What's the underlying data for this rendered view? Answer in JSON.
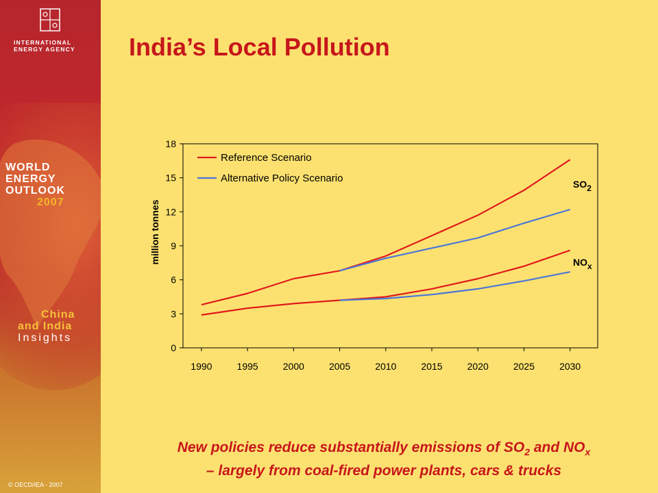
{
  "sidebar": {
    "org_line1": "INTERNATIONAL",
    "org_line2": "ENERGY AGENCY",
    "weo_line1": "WORLD",
    "weo_line2": "ENERGY",
    "weo_line3": "OUTLOOK",
    "weo_year": "2007",
    "ci_line1": "China",
    "ci_line2": "and India",
    "ci_line3": "Insights",
    "copyright": "© OECD/IEA - 2007"
  },
  "colors": {
    "background": "#fde170",
    "title": "#c6161b",
    "reference": "#e01a1c",
    "alternative": "#4a76d8"
  },
  "slide": {
    "title": "India’s Local Pollution"
  },
  "caption": {
    "line1_a": "New policies reduce substantially emissions of SO",
    "line1_sub1": "2",
    "line1_b": " and NO",
    "line1_sub2": "x",
    "line2": "– largely from coal-fired power plants, cars & trucks"
  },
  "chart_data": {
    "type": "line",
    "x": [
      1990,
      1995,
      2000,
      2005,
      2010,
      2015,
      2020,
      2025,
      2030
    ],
    "xlim": [
      1988,
      2033
    ],
    "ylim": [
      0,
      18
    ],
    "yticks": [
      0,
      3,
      6,
      9,
      12,
      15,
      18
    ],
    "ylabel": "million tonnes",
    "xlabel": "",
    "grid": false,
    "legend": {
      "placement": "top-left",
      "entries": [
        {
          "label": "Reference Scenario",
          "color": "#e01a1c"
        },
        {
          "label": "Alternative Policy Scenario",
          "color": "#4a76d8"
        }
      ]
    },
    "series": [
      {
        "group": "SO2",
        "scenario": "Reference Scenario",
        "color": "#e01a1c",
        "x": [
          1990,
          1995,
          2000,
          2005,
          2010,
          2015,
          2020,
          2025,
          2030
        ],
        "values": [
          3.8,
          4.8,
          6.1,
          6.8,
          8.1,
          9.9,
          11.7,
          13.9,
          16.6
        ]
      },
      {
        "group": "SO2",
        "scenario": "Alternative Policy Scenario",
        "color": "#4a76d8",
        "x": [
          2005,
          2010,
          2015,
          2020,
          2025,
          2030
        ],
        "values": [
          6.8,
          7.9,
          8.8,
          9.7,
          11.0,
          12.2
        ]
      },
      {
        "group": "NOx",
        "scenario": "Reference Scenario",
        "color": "#e01a1c",
        "x": [
          1990,
          1995,
          2000,
          2005,
          2010,
          2015,
          2020,
          2025,
          2030
        ],
        "values": [
          2.9,
          3.5,
          3.9,
          4.2,
          4.5,
          5.2,
          6.1,
          7.2,
          8.6
        ]
      },
      {
        "group": "NOx",
        "scenario": "Alternative Policy Scenario",
        "color": "#4a76d8",
        "x": [
          2005,
          2010,
          2015,
          2020,
          2025,
          2030
        ],
        "values": [
          4.2,
          4.35,
          4.7,
          5.2,
          5.9,
          6.7
        ]
      }
    ],
    "annotations": [
      {
        "text": "SO",
        "sub": "2",
        "near": "SO2"
      },
      {
        "text": "NO",
        "sub": "x",
        "near": "NOx"
      }
    ]
  }
}
